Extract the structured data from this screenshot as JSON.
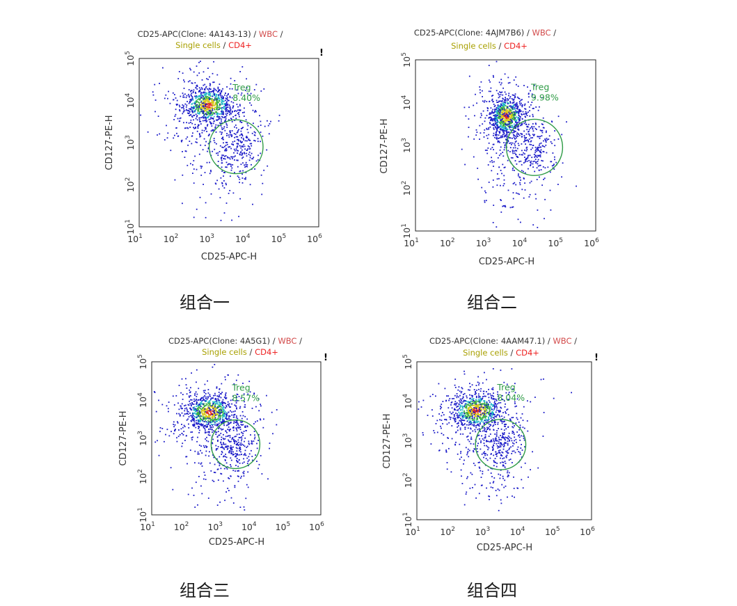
{
  "colors": {
    "gate": "#2e9b45",
    "wbc": "#d24a4a",
    "single_cells": "#a8a000",
    "cd4": "#ee2222",
    "text": "#333333",
    "frame": "#222222"
  },
  "chart_data": [
    {
      "type": "scatter",
      "title_prefix": "CD25-APC(Clone: 4A143-13) / ",
      "gate_path": {
        "wbc": "WBC",
        "sep1": " /",
        "single": "Single cells",
        "sep2": " / ",
        "cd4": "CD4+"
      },
      "marker": "!",
      "xlabel": "CD25-APC-H",
      "ylabel": "CD127-PE-H",
      "x_scale": "log10",
      "y_scale": "log10",
      "xlim": [
        10,
        1000000
      ],
      "ylim": [
        10,
        100000
      ],
      "x_ticks": [
        {
          "base": "10",
          "exp": "1"
        },
        {
          "base": "10",
          "exp": "2"
        },
        {
          "base": "10",
          "exp": "3"
        },
        {
          "base": "10",
          "exp": "4"
        },
        {
          "base": "10",
          "exp": "5"
        },
        {
          "base": "10",
          "exp": "6"
        }
      ],
      "y_ticks": [
        {
          "base": "10",
          "exp": "1"
        },
        {
          "base": "10",
          "exp": "2"
        },
        {
          "base": "10",
          "exp": "3"
        },
        {
          "base": "10",
          "exp": "4"
        },
        {
          "base": "10",
          "exp": "5"
        }
      ],
      "population": {
        "center": [
          800,
          8000
        ],
        "spread": [
          0.32,
          0.2
        ]
      },
      "gate": {
        "name": "Treg",
        "percent": "8.40%",
        "center": [
          5000,
          800
        ],
        "radius_decades": 0.75
      },
      "caption": "组合一"
    },
    {
      "type": "scatter",
      "title_prefix": "CD25-APC(Clone: 4AJM7B6) / ",
      "gate_path": {
        "wbc": "WBC",
        "sep1": " /",
        "single": "Single cells",
        "sep2": " / ",
        "cd4": "CD4+"
      },
      "marker": "!",
      "xlabel": "CD25-APC-H",
      "ylabel": "CD127-PE-H",
      "x_scale": "log10",
      "y_scale": "log10",
      "xlim": [
        10,
        1000000
      ],
      "ylim": [
        10,
        100000
      ],
      "x_ticks": [
        {
          "base": "10",
          "exp": "1"
        },
        {
          "base": "10",
          "exp": "2"
        },
        {
          "base": "10",
          "exp": "3"
        },
        {
          "base": "10",
          "exp": "4"
        },
        {
          "base": "10",
          "exp": "5"
        },
        {
          "base": "10",
          "exp": "6"
        }
      ],
      "y_ticks": [
        {
          "base": "10",
          "exp": "1"
        },
        {
          "base": "10",
          "exp": "2"
        },
        {
          "base": "10",
          "exp": "3"
        },
        {
          "base": "10",
          "exp": "4"
        },
        {
          "base": "10",
          "exp": "5"
        }
      ],
      "population": {
        "center": [
          3200,
          5000
        ],
        "spread": [
          0.22,
          0.22
        ]
      },
      "gate": {
        "name": "Treg",
        "percent": "9.98%",
        "center": [
          20000,
          900
        ],
        "radius_decades": 0.78
      },
      "caption": "组合二"
    },
    {
      "type": "scatter",
      "title_prefix": "CD25-APC(Clone: 4A5G1) / ",
      "gate_path": {
        "wbc": "WBC",
        "sep1": " /",
        "single": "Single cells",
        "sep2": " / ",
        "cd4": "CD4+"
      },
      "marker": "!",
      "xlabel": "CD25-APC-H",
      "ylabel": "CD127-PE-H",
      "x_scale": "log10",
      "y_scale": "log10",
      "xlim": [
        10,
        1000000
      ],
      "ylim": [
        10,
        100000
      ],
      "x_ticks": [
        {
          "base": "10",
          "exp": "1"
        },
        {
          "base": "10",
          "exp": "2"
        },
        {
          "base": "10",
          "exp": "3"
        },
        {
          "base": "10",
          "exp": "4"
        },
        {
          "base": "10",
          "exp": "5"
        },
        {
          "base": "10",
          "exp": "6"
        }
      ],
      "y_ticks": [
        {
          "base": "10",
          "exp": "1"
        },
        {
          "base": "10",
          "exp": "2"
        },
        {
          "base": "10",
          "exp": "3"
        },
        {
          "base": "10",
          "exp": "4"
        },
        {
          "base": "10",
          "exp": "5"
        }
      ],
      "population": {
        "center": [
          500,
          5000
        ],
        "spread": [
          0.35,
          0.22
        ]
      },
      "gate": {
        "name": "Treg",
        "percent": "8.57%",
        "center": [
          3000,
          700
        ],
        "radius_decades": 0.72
      },
      "caption": "组合三"
    },
    {
      "type": "scatter",
      "title_prefix": "CD25-APC(Clone: 4AAM47.1) / ",
      "gate_path": {
        "wbc": "WBC",
        "sep1": " /",
        "single": "Single cells",
        "sep2": " / ",
        "cd4": "CD4+"
      },
      "marker": "!",
      "xlabel": "CD25-APC-H",
      "ylabel": "CD127-PE-H",
      "x_scale": "log10",
      "y_scale": "log10",
      "xlim": [
        10,
        1000000
      ],
      "ylim": [
        10,
        100000
      ],
      "x_ticks": [
        {
          "base": "10",
          "exp": "1"
        },
        {
          "base": "10",
          "exp": "2"
        },
        {
          "base": "10",
          "exp": "3"
        },
        {
          "base": "10",
          "exp": "4"
        },
        {
          "base": "10",
          "exp": "5"
        },
        {
          "base": "10",
          "exp": "6"
        }
      ],
      "y_ticks": [
        {
          "base": "10",
          "exp": "1"
        },
        {
          "base": "10",
          "exp": "2"
        },
        {
          "base": "10",
          "exp": "3"
        },
        {
          "base": "10",
          "exp": "4"
        },
        {
          "base": "10",
          "exp": "5"
        }
      ],
      "population": {
        "center": [
          500,
          6000
        ],
        "spread": [
          0.35,
          0.22
        ]
      },
      "gate": {
        "name": "Treg",
        "percent": "8.04%",
        "center": [
          2500,
          800
        ],
        "radius_decades": 0.72
      },
      "caption": "组合四"
    }
  ]
}
